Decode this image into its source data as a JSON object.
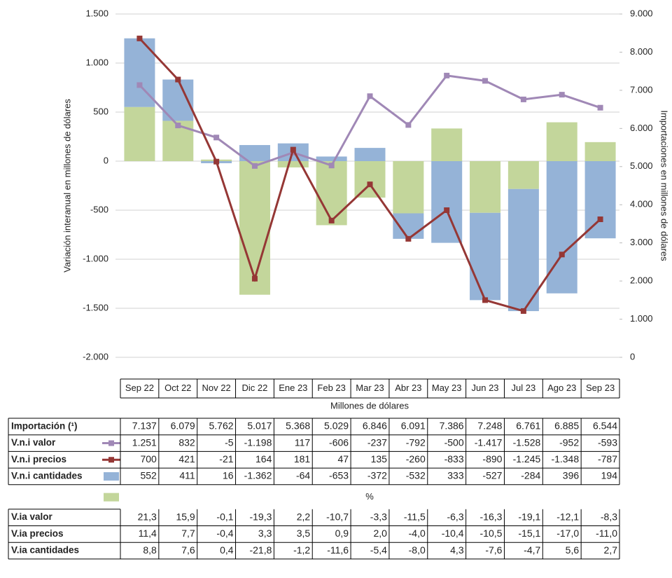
{
  "chart_data": {
    "type": "combo",
    "categories": [
      "Sep 22",
      "Oct 22",
      "Nov 22",
      "Dic 22",
      "Ene 23",
      "Feb 23",
      "Mar 23",
      "Abr 23",
      "May 23",
      "Jun 23",
      "Jul 23",
      "Ago 23",
      "Sep 23"
    ],
    "y_label": "Variación interanual en millones de dólares",
    "y2_label": "Importaciones en millones de dólares",
    "table_unit": "Millones de dólares",
    "ylim": [
      -2000,
      1500
    ],
    "yticks": [
      {
        "value": -2000,
        "label": "-2.000"
      },
      {
        "value": -1500,
        "label": "-1.500"
      },
      {
        "value": -1000,
        "label": "-1.000"
      },
      -500,
      0,
      500,
      {
        "value": 1000,
        "label": "1.000"
      },
      {
        "value": 1500,
        "label": "1.500"
      }
    ],
    "y2lim": [
      0,
      9000
    ],
    "y2ticks": [
      0,
      {
        "value": 1000,
        "label": "1.000"
      },
      {
        "value": 2000,
        "label": "2.000"
      },
      {
        "value": 3000,
        "label": "3.000"
      },
      {
        "value": 4000,
        "label": "4.000"
      },
      {
        "value": 5000,
        "label": "5.000"
      },
      {
        "value": 6000,
        "label": "6.000"
      },
      {
        "value": 7000,
        "label": "7.000"
      },
      {
        "value": 8000,
        "label": "8.000"
      },
      {
        "value": 9000,
        "label": "9.000"
      }
    ],
    "grid": true,
    "series": [
      {
        "name": "Importación (¹)",
        "type": "line",
        "axis": "y2",
        "color": "#a088b6",
        "values": [
          7137,
          6079,
          5762,
          5017,
          5368,
          5029,
          6846,
          6091,
          7386,
          7248,
          6761,
          6885,
          6544
        ],
        "value_labels": [
          "7.137",
          "6.079",
          "5.762",
          "5.017",
          "5.368",
          "5.029",
          "6.846",
          "6.091",
          "7.386",
          "7.248",
          "6.761",
          "6.885",
          "6.544"
        ]
      },
      {
        "name": "V.n.i valor",
        "type": "line",
        "axis": "y",
        "color": "#953735",
        "values": [
          1251,
          832,
          -5,
          -1198,
          117,
          -606,
          -237,
          -792,
          -500,
          -1417,
          -1528,
          -952,
          -593
        ],
        "value_labels": [
          "1.251",
          "832",
          "-5",
          "-1.198",
          "117",
          "-606",
          "-237",
          "-792",
          "-500",
          "-1.417",
          "-1.528",
          "-952",
          "-593"
        ]
      },
      {
        "name": "V.n.i precios",
        "type": "bar",
        "axis": "y",
        "color": "#95b3d7",
        "values": [
          700,
          421,
          -21,
          164,
          181,
          47,
          135,
          -260,
          -833,
          -890,
          -1245,
          -1348,
          -787
        ],
        "value_labels": [
          "700",
          "421",
          "-21",
          "164",
          "181",
          "47",
          "135",
          "-260",
          "-833",
          "-890",
          "-1.245",
          "-1.348",
          "-787"
        ]
      },
      {
        "name": "V.n.i cantidades",
        "type": "bar",
        "axis": "y",
        "color": "#c3d69b",
        "values": [
          552,
          411,
          16,
          -1362,
          -64,
          -653,
          -372,
          -532,
          333,
          -527,
          -284,
          396,
          194
        ],
        "value_labels": [
          "552",
          "411",
          "16",
          "-1.362",
          "-64",
          "-653",
          "-372",
          "-532",
          "333",
          "-527",
          "-284",
          "396",
          "194"
        ]
      }
    ]
  },
  "pct_table": {
    "label": "%",
    "rows": [
      {
        "name": "V.ia valor",
        "cells": [
          "21,3",
          "15,9",
          "-0,1",
          "-19,3",
          "2,2",
          "-10,7",
          "-3,3",
          "-11,5",
          "-6,3",
          "-16,3",
          "-19,1",
          "-12,1",
          "-8,3"
        ]
      },
      {
        "name": "V.ia precios",
        "cells": [
          "11,4",
          "7,7",
          "-0,4",
          "3,3",
          "3,5",
          "0,9",
          "2,0",
          "-4,0",
          "-10,4",
          "-10,5",
          "-15,1",
          "-17,0",
          "-11,0"
        ]
      },
      {
        "name": "V.ia cantidades",
        "cells": [
          "8,8",
          "7,6",
          "0,4",
          "-21,8",
          "-1,2",
          "-11,6",
          "-5,4",
          "-8,0",
          "4,3",
          "-7,6",
          "-4,7",
          "5,6",
          "2,7"
        ]
      }
    ]
  }
}
